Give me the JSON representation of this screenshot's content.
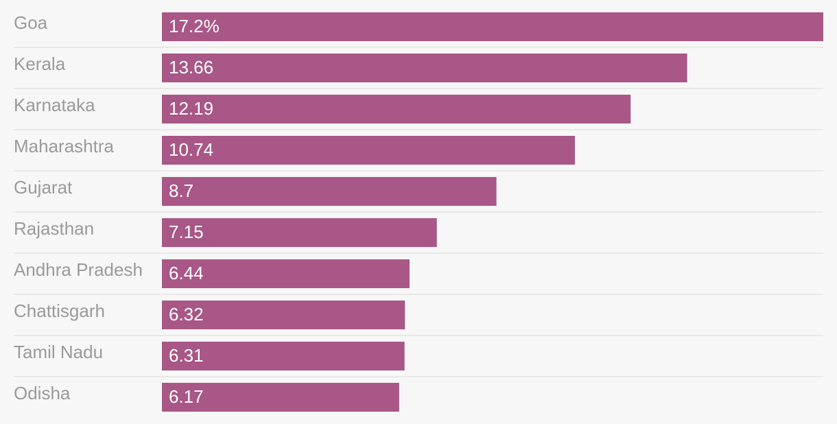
{
  "chart_data": {
    "type": "bar",
    "orientation": "horizontal",
    "categories": [
      "Goa",
      "Kerala",
      "Karnataka",
      "Maharashtra",
      "Gujarat",
      "Rajasthan",
      "Andhra Pradesh",
      "Chattisgarh",
      "Tamil Nadu",
      "Odisha"
    ],
    "values": [
      17.2,
      13.66,
      12.19,
      10.74,
      8.7,
      7.15,
      6.44,
      6.32,
      6.31,
      6.17
    ],
    "value_labels": [
      "17.2%",
      "13.66",
      "12.19",
      "10.74",
      "8.7",
      "7.15",
      "6.44",
      "6.32",
      "6.31",
      "6.17"
    ],
    "xlim": [
      0,
      17.2
    ],
    "bar_color": "#a85786",
    "title": "",
    "xlabel": "",
    "ylabel": ""
  }
}
